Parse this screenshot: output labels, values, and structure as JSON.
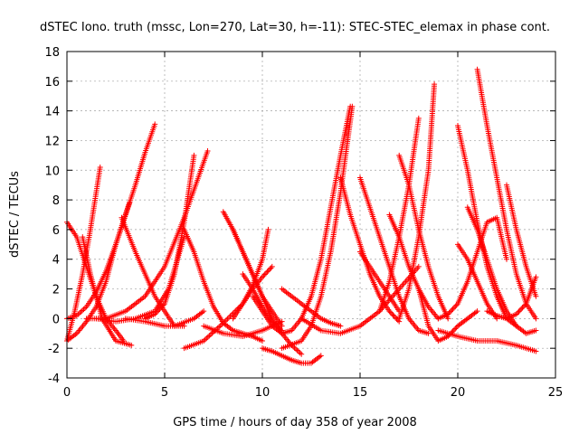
{
  "chart_data": {
    "type": "scatter",
    "title": "dSTEC Iono. truth (mssc, Lon=270, Lat=30, h=-11): STEC-STEC_elemax in phase cont.",
    "xlabel": "GPS time / hours of day 358 of year 2008",
    "ylabel": "dSTEC  / TECUs",
    "xlim": [
      0,
      25
    ],
    "ylim": [
      -4,
      18
    ],
    "xticks": [
      0,
      5,
      10,
      15,
      20,
      25
    ],
    "yticks": [
      -4,
      -2,
      0,
      2,
      4,
      6,
      8,
      10,
      12,
      14,
      16,
      18
    ],
    "grid": true,
    "marker": "+",
    "marker_color": "#ff0000",
    "series": [
      {
        "x": [
          0.0,
          0.5,
          1.0,
          1.5,
          2.0,
          2.5,
          3.0,
          3.5,
          4.0,
          4.5
        ],
        "y": [
          0.0,
          0.2,
          0.8,
          1.8,
          3.2,
          5.0,
          7.0,
          9.0,
          11.2,
          13.1
        ]
      },
      {
        "x": [
          0.0,
          0.5,
          1.0,
          1.5,
          2.0,
          2.5,
          2.9
        ],
        "y": [
          6.5,
          5.5,
          3.5,
          1.5,
          0.0,
          -0.8,
          -1.5
        ]
      },
      {
        "x": [
          0.0,
          0.4,
          0.8,
          1.2,
          1.7
        ],
        "y": [
          -1.5,
          0.5,
          3.0,
          6.0,
          10.2
        ]
      },
      {
        "x": [
          0.0,
          0.5,
          1.0,
          1.5,
          2.0,
          2.5,
          3.2
        ],
        "y": [
          -1.5,
          -1.0,
          -0.2,
          0.8,
          2.5,
          5.0,
          7.8
        ]
      },
      {
        "x": [
          0.8,
          1.2,
          1.8,
          2.5,
          3.3
        ],
        "y": [
          5.5,
          3.0,
          0.0,
          -1.5,
          -1.8
        ]
      },
      {
        "x": [
          1.0,
          2.0,
          3.0,
          4.0,
          5.0,
          6.0,
          7.2
        ],
        "y": [
          0.0,
          0.0,
          0.5,
          1.5,
          3.5,
          6.8,
          11.3
        ]
      },
      {
        "x": [
          2.8,
          3.5,
          4.5,
          5.5,
          6.5,
          7.0
        ],
        "y": [
          6.8,
          4.5,
          1.5,
          -0.5,
          0.0,
          0.5
        ]
      },
      {
        "x": [
          1.5,
          2.5,
          3.5,
          4.5,
          5.2,
          6.0
        ],
        "y": [
          0.0,
          -0.2,
          0.0,
          0.5,
          2.0,
          5.5
        ]
      },
      {
        "x": [
          4.0,
          4.5,
          5.0,
          5.5,
          6.0,
          6.5
        ],
        "y": [
          0.0,
          0.3,
          1.0,
          3.0,
          6.5,
          11.0
        ]
      },
      {
        "x": [
          3.0,
          4.0,
          5.0,
          6.0
        ],
        "y": [
          0.0,
          -0.2,
          -0.5,
          -0.5
        ]
      },
      {
        "x": [
          6.0,
          6.5,
          7.0,
          7.5,
          8.0,
          8.5,
          9.0,
          9.5,
          10.0
        ],
        "y": [
          6.0,
          4.5,
          2.5,
          0.8,
          -0.3,
          -0.8,
          -1.0,
          -1.2,
          -1.5
        ]
      },
      {
        "x": [
          6.0,
          7.0,
          8.0,
          9.0,
          9.5,
          10.0,
          10.5
        ],
        "y": [
          -2.0,
          -1.5,
          -0.3,
          1.0,
          2.0,
          2.8,
          3.5
        ]
      },
      {
        "x": [
          8.0,
          8.5,
          9.0,
          9.5,
          10.0,
          10.5,
          11.0
        ],
        "y": [
          7.2,
          6.0,
          4.5,
          3.0,
          1.5,
          0.5,
          -0.5
        ]
      },
      {
        "x": [
          8.5,
          9.0,
          9.5,
          10.0,
          10.5,
          11.0,
          11.5,
          12.0
        ],
        "y": [
          6.0,
          4.5,
          3.0,
          1.5,
          0.0,
          -1.0,
          -1.8,
          -2.4
        ]
      },
      {
        "x": [
          8.5,
          9.0,
          9.5,
          10.0,
          10.3
        ],
        "y": [
          0.0,
          1.0,
          2.2,
          4.0,
          6.0
        ]
      },
      {
        "x": [
          9.0,
          9.5,
          10.0,
          10.5,
          11.0
        ],
        "y": [
          3.0,
          2.0,
          0.8,
          -0.2,
          -0.8
        ]
      },
      {
        "x": [
          7.0,
          8.0,
          9.0,
          10.0,
          11.0
        ],
        "y": [
          -0.5,
          -1.0,
          -1.2,
          -0.8,
          -0.2
        ]
      },
      {
        "x": [
          10.0,
          10.5,
          11.0,
          11.5,
          12.0,
          12.5,
          13.0
        ],
        "y": [
          -2.0,
          -2.2,
          -2.5,
          -2.8,
          -3.0,
          -3.0,
          -2.5
        ]
      },
      {
        "x": [
          9.5,
          10.0,
          10.5,
          11.0,
          11.5,
          12.0,
          12.5,
          13.0,
          13.5,
          14.0,
          14.5
        ],
        "y": [
          1.5,
          0.5,
          -0.5,
          -1.0,
          -0.8,
          0.0,
          1.5,
          4.0,
          7.5,
          11.0,
          14.3
        ]
      },
      {
        "x": [
          11.0,
          12.0,
          12.5,
          13.0,
          13.5,
          14.0,
          14.6
        ],
        "y": [
          -2.0,
          -1.5,
          -0.5,
          1.5,
          4.5,
          8.5,
          14.3
        ]
      },
      {
        "x": [
          11.0,
          12.0,
          13.0,
          13.5,
          14.0
        ],
        "y": [
          2.0,
          1.0,
          0.0,
          -0.3,
          -0.5
        ]
      },
      {
        "x": [
          12.0,
          13.0,
          14.0,
          15.0,
          16.0,
          17.0,
          18.0
        ],
        "y": [
          0.0,
          -0.8,
          -1.0,
          -0.5,
          0.5,
          2.0,
          3.5
        ]
      },
      {
        "x": [
          14.0,
          14.5,
          15.0,
          15.5,
          16.0,
          16.5,
          17.0
        ],
        "y": [
          9.5,
          7.0,
          5.0,
          3.0,
          1.5,
          0.5,
          -0.2
        ]
      },
      {
        "x": [
          15.0,
          15.5,
          16.0,
          16.5,
          17.0,
          17.5,
          18.0,
          18.5
        ],
        "y": [
          9.5,
          7.5,
          5.5,
          3.5,
          1.5,
          0.0,
          -0.8,
          -1.0
        ]
      },
      {
        "x": [
          15.0,
          15.5,
          16.0,
          16.5,
          17.0
        ],
        "y": [
          4.5,
          3.5,
          2.5,
          1.5,
          0.5
        ]
      },
      {
        "x": [
          16.5,
          17.0,
          17.5,
          18.0,
          18.5,
          19.0
        ],
        "y": [
          7.0,
          5.5,
          3.5,
          2.0,
          0.8,
          0.0
        ]
      },
      {
        "x": [
          17.0,
          17.5,
          18.0,
          18.5,
          19.0,
          19.5
        ],
        "y": [
          11.0,
          9.0,
          6.0,
          3.5,
          1.5,
          0.0
        ]
      },
      {
        "x": [
          16.0,
          16.5,
          17.0,
          17.5,
          18.0
        ],
        "y": [
          0.5,
          2.5,
          5.5,
          9.0,
          13.5
        ]
      },
      {
        "x": [
          17.0,
          17.5,
          18.0,
          18.5,
          18.8
        ],
        "y": [
          0.0,
          2.0,
          5.5,
          10.0,
          15.8
        ]
      },
      {
        "x": [
          18.0,
          18.5,
          19.0,
          19.5,
          20.0,
          20.5,
          21.0
        ],
        "y": [
          2.0,
          -0.5,
          -1.5,
          -1.2,
          -0.5,
          0.0,
          0.5
        ]
      },
      {
        "x": [
          19.0,
          20.0,
          21.0,
          22.0,
          23.0,
          24.0
        ],
        "y": [
          -0.8,
          -1.2,
          -1.5,
          -1.5,
          -1.8,
          -2.2
        ]
      },
      {
        "x": [
          20.0,
          20.5,
          21.0,
          21.5,
          22.0,
          22.5,
          23.0
        ],
        "y": [
          13.0,
          10.0,
          6.5,
          3.5,
          1.5,
          0.0,
          -0.5
        ]
      },
      {
        "x": [
          20.0,
          20.5,
          21.0,
          21.5,
          22.0
        ],
        "y": [
          5.0,
          4.0,
          2.5,
          1.0,
          0.0
        ]
      },
      {
        "x": [
          19.0,
          19.5,
          20.0,
          20.5,
          21.0,
          21.5,
          22.0,
          22.5
        ],
        "y": [
          0.0,
          0.3,
          1.0,
          2.5,
          4.5,
          6.5,
          6.8,
          4.0
        ]
      },
      {
        "x": [
          20.5,
          21.0,
          21.5,
          22.0,
          22.5,
          23.0,
          23.5,
          24.0
        ],
        "y": [
          7.5,
          6.0,
          4.0,
          2.0,
          0.5,
          -0.5,
          -1.0,
          -0.8
        ]
      },
      {
        "x": [
          21.0,
          21.5,
          22.0,
          22.5,
          23.0,
          23.5,
          24.0
        ],
        "y": [
          16.8,
          13.0,
          9.5,
          6.0,
          3.0,
          1.0,
          0.0
        ]
      },
      {
        "x": [
          22.5,
          23.0,
          23.5,
          24.0
        ],
        "y": [
          9.0,
          6.0,
          3.5,
          1.5
        ]
      },
      {
        "x": [
          21.5,
          22.0,
          22.5,
          23.0,
          23.5,
          24.0
        ],
        "y": [
          0.5,
          0.2,
          0.0,
          0.3,
          1.0,
          2.8
        ]
      }
    ]
  }
}
